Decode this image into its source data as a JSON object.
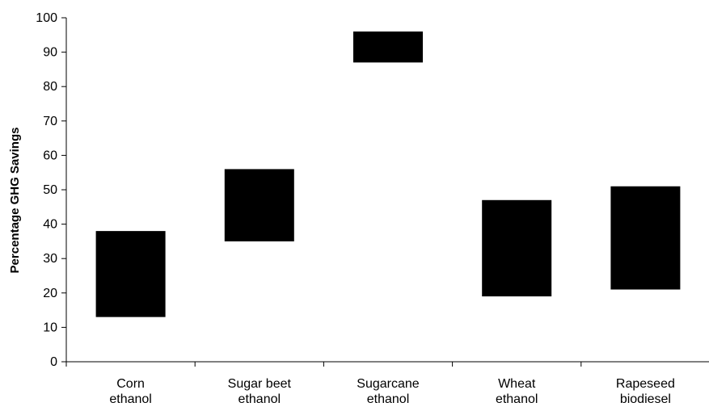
{
  "chart_data": {
    "type": "bar",
    "subtype": "floating-range",
    "title": "",
    "xlabel": "",
    "ylabel": "Percentage GHG Savings",
    "ylim": [
      0,
      100
    ],
    "yticks": [
      "0",
      "10",
      "20",
      "30",
      "40",
      "50",
      "60",
      "70",
      "80",
      "90",
      "100"
    ],
    "grid": false,
    "legend": "none",
    "bar_color": "#000000",
    "categories": [
      [
        "Corn",
        "ethanol"
      ],
      [
        "Sugar beet",
        "ethanol"
      ],
      [
        "Sugarcane",
        "ethanol"
      ],
      [
        "Wheat",
        "ethanol"
      ],
      [
        "Rapeseed",
        "biodiesel"
      ]
    ],
    "series": [
      {
        "low": [
          13,
          35,
          87,
          19,
          21
        ],
        "high": [
          38,
          56,
          96,
          47,
          51
        ]
      }
    ]
  }
}
